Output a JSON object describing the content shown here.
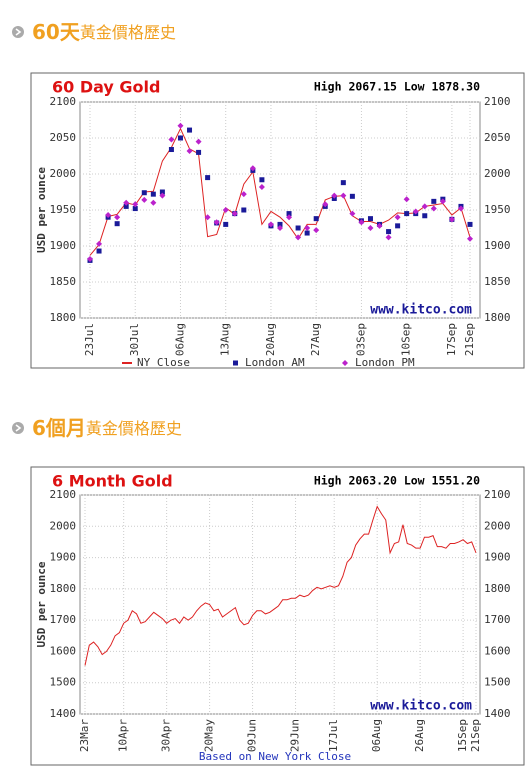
{
  "headings": [
    {
      "lead": "60天",
      "rest": "黃金價格歷史"
    },
    {
      "lead": "6個月",
      "rest": "黃金價格歷史"
    }
  ],
  "chart_data": [
    {
      "type": "line",
      "title": "60 Day Gold",
      "stats": "High 2067.15 Low 1878.30",
      "watermark": "www.kitco.com",
      "ylabel": "USD per ounce",
      "categories": [
        "23Jul",
        null,
        null,
        null,
        null,
        "30Jul",
        null,
        null,
        null,
        null,
        "06Aug",
        null,
        null,
        null,
        null,
        "13Aug",
        null,
        null,
        null,
        null,
        "20Aug",
        null,
        null,
        null,
        null,
        "27Aug",
        null,
        null,
        null,
        null,
        "03Sep",
        null,
        null,
        null,
        null,
        "10Sep",
        null,
        null,
        null,
        null,
        "17Sep",
        null,
        "21Sep"
      ],
      "series": [
        {
          "name": "NY Close",
          "color": "#dd2222",
          "marker": "none",
          "values": [
            1887,
            1902,
            1941,
            1944,
            1960,
            1957,
            1975,
            1976,
            2018,
            2037,
            2063,
            2035,
            2028,
            1913,
            1916,
            1953,
            1944,
            1986,
            2003,
            1930,
            1948,
            1940,
            1928,
            1910,
            1930,
            1930,
            1964,
            1969,
            1970,
            1942,
            1934,
            1934,
            1930,
            1936,
            1946,
            1945,
            1946,
            1955,
            1957,
            1959,
            1943,
            1953,
            1912
          ]
        },
        {
          "name": "London AM",
          "color": "#1a1a99",
          "marker": "square",
          "values": [
            1880,
            1893,
            1940,
            1931,
            1955,
            1952,
            1974,
            1972,
            1975,
            2034,
            2050,
            2061,
            2030,
            1995,
            1932,
            1930,
            1945,
            1950,
            2005,
            1992,
            1928,
            1930,
            1945,
            1925,
            1918,
            1938,
            1955,
            1966,
            1988,
            1969,
            1935,
            1938,
            1930,
            1920,
            1928,
            1945,
            1945,
            1942,
            1962,
            1965,
            1937,
            1955,
            1930
          ]
        },
        {
          "name": "London PM",
          "color": "#bb22cc",
          "marker": "diamond",
          "values": [
            1882,
            1903,
            1943,
            1940,
            1960,
            1958,
            1964,
            1960,
            1970,
            2048,
            2067,
            2032,
            2045,
            1940,
            1933,
            1950,
            1945,
            1972,
            2008,
            1982,
            1930,
            1925,
            1940,
            1912,
            1925,
            1922,
            1958,
            1970,
            1970,
            1945,
            1933,
            1925,
            1928,
            1912,
            1940,
            1965,
            1948,
            1955,
            1952,
            1962,
            1937,
            1952,
            1910
          ]
        }
      ],
      "ylim": [
        1800,
        2100
      ],
      "yticks": [
        1800,
        1850,
        1900,
        1950,
        2000,
        2050,
        2100
      ],
      "grid": true,
      "legend": "bottom"
    },
    {
      "type": "line",
      "title": "6 Month Gold",
      "stats": "High 2063.20 Low 1551.20",
      "watermark": "www.kitco.com",
      "ylabel": "USD per ounce",
      "footer": "Based on New York Close",
      "categories": [
        "23Mar",
        null,
        null,
        null,
        null,
        null,
        null,
        null,
        null,
        "10Apr",
        null,
        null,
        null,
        null,
        null,
        null,
        null,
        null,
        null,
        "30Apr",
        null,
        null,
        null,
        null,
        null,
        null,
        null,
        null,
        null,
        "20May",
        null,
        null,
        null,
        null,
        null,
        null,
        null,
        null,
        null,
        "09Jun",
        null,
        null,
        null,
        null,
        null,
        null,
        null,
        null,
        null,
        "29Jun",
        null,
        null,
        null,
        null,
        null,
        null,
        null,
        null,
        "17Jul",
        null,
        null,
        null,
        null,
        null,
        null,
        null,
        null,
        null,
        "06Aug",
        null,
        null,
        null,
        null,
        null,
        null,
        null,
        null,
        null,
        "26Aug",
        null,
        null,
        null,
        null,
        null,
        null,
        null,
        null,
        null,
        "15Sep",
        null,
        null,
        "21Sep"
      ],
      "color": "#dd2222",
      "values": [
        1555,
        1620,
        1630,
        1615,
        1590,
        1600,
        1620,
        1650,
        1660,
        1690,
        1700,
        1730,
        1720,
        1690,
        1695,
        1710,
        1725,
        1715,
        1705,
        1690,
        1700,
        1705,
        1690,
        1710,
        1700,
        1710,
        1730,
        1745,
        1755,
        1750,
        1730,
        1735,
        1710,
        1720,
        1730,
        1740,
        1700,
        1685,
        1690,
        1715,
        1730,
        1730,
        1720,
        1725,
        1735,
        1745,
        1765,
        1765,
        1770,
        1770,
        1780,
        1775,
        1780,
        1795,
        1805,
        1800,
        1805,
        1810,
        1805,
        1810,
        1840,
        1885,
        1900,
        1940,
        1960,
        1975,
        1975,
        2020,
        2063,
        2040,
        2020,
        1915,
        1945,
        1950,
        2005,
        1945,
        1940,
        1930,
        1930,
        1965,
        1965,
        1970,
        1935,
        1935,
        1930,
        1945,
        1945,
        1950,
        1957,
        1945,
        1950,
        1915
      ],
      "ylim": [
        1400,
        2100
      ],
      "yticks": [
        1400,
        1500,
        1600,
        1700,
        1800,
        1900,
        2000,
        2100
      ],
      "grid": true
    }
  ]
}
